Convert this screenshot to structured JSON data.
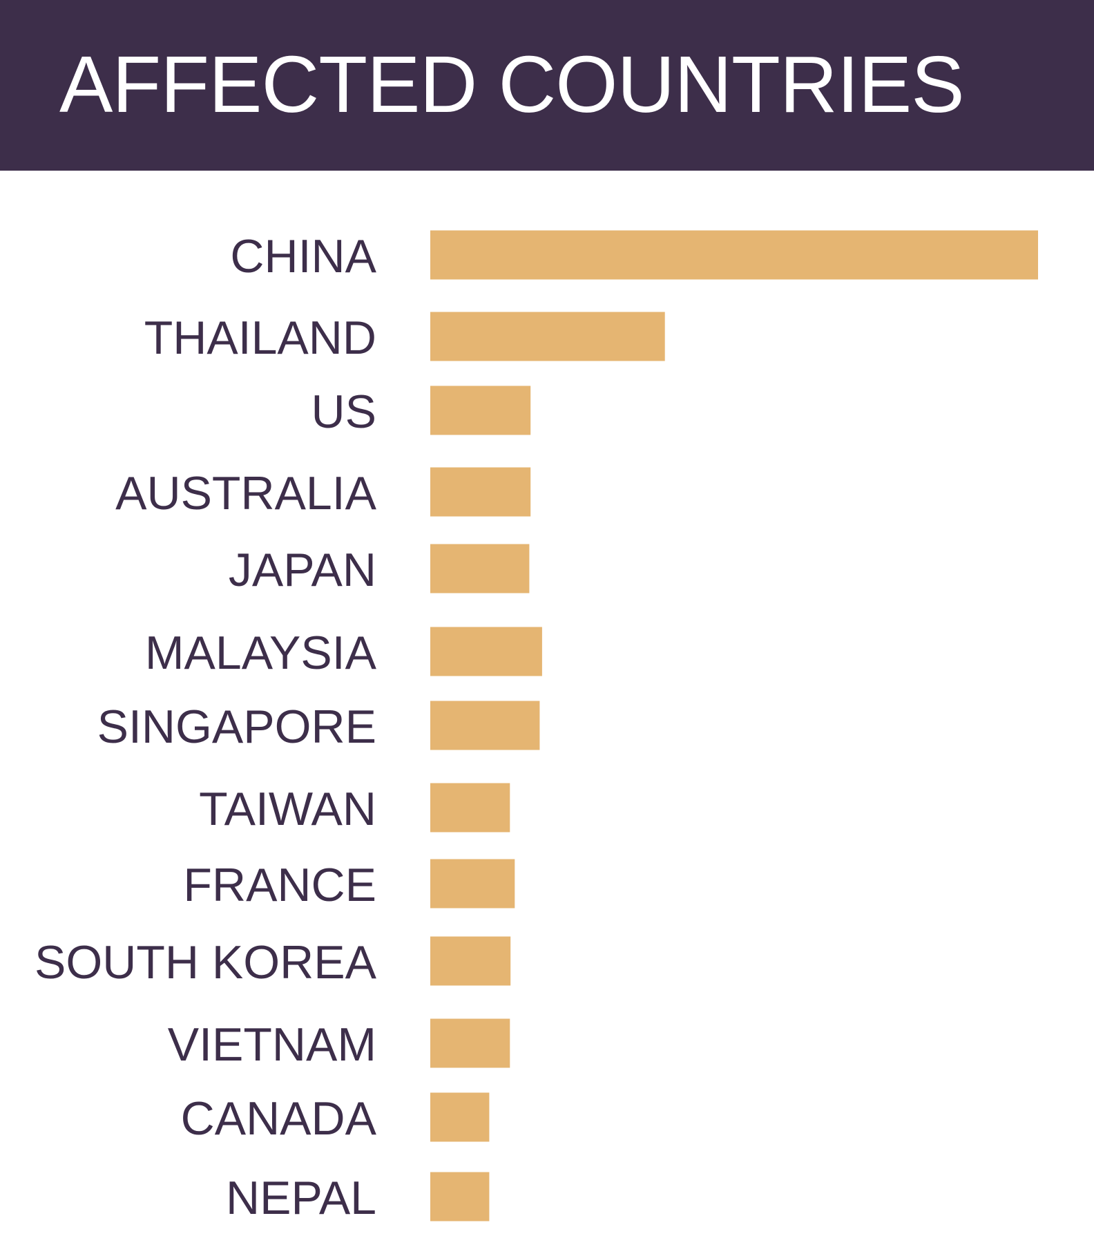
{
  "title": "AFFECTED COUNTRIES",
  "colors": {
    "banner": "#3d2e4a",
    "title_text": "#ffffff",
    "bar": "#e5b572",
    "label_text": "#3d2e4a",
    "background": "#ffffff"
  },
  "chart_data": {
    "type": "bar",
    "orientation": "horizontal",
    "title": "AFFECTED COUNTRIES",
    "xlabel": "",
    "ylabel": "",
    "grid": false,
    "categories": [
      "CHINA",
      "THAILAND",
      "US",
      "AUSTRALIA",
      "JAPAN",
      "MALAYSIA",
      "SINGAPORE",
      "TAIWAN",
      "FRANCE",
      "SOUTH KOREA",
      "VIETNAM",
      "CANADA",
      "NEPAL"
    ],
    "values": [
      100,
      38.6,
      16.5,
      16.5,
      16.3,
      18.4,
      18.0,
      13.1,
      13.9,
      13.2,
      13.1,
      9.7,
      9.7
    ],
    "xlim": [
      0,
      100
    ]
  }
}
